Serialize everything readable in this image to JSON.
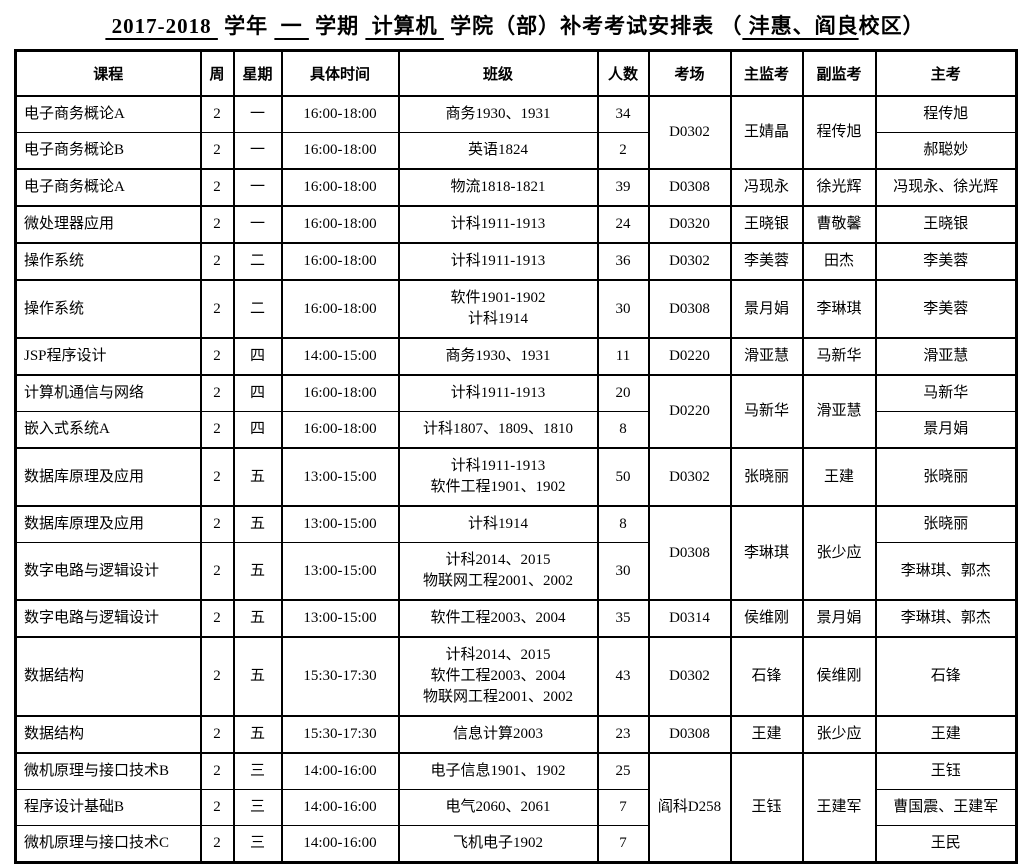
{
  "page": {
    "background_color": "#ffffff",
    "text_color": "#000000",
    "border_color": "#000000"
  },
  "title": {
    "full_text": "2017-2018 学年 一 学期 计算机 学院（部）补考考试安排表 （沣惠、阎良校区）",
    "parts": [
      {
        "text": " 2017-2018 ",
        "underline": true
      },
      {
        "text": " 学年 ",
        "underline": false
      },
      {
        "text": " 一 ",
        "underline": true
      },
      {
        "text": " 学期 ",
        "underline": false
      },
      {
        "text": " 计算机 ",
        "underline": true
      },
      {
        "text": " 学院（部）补考考试安排表 （",
        "underline": false
      },
      {
        "text": " 沣惠、阎良",
        "underline": true
      },
      {
        "text": "校区）",
        "underline": false
      }
    ]
  },
  "table": {
    "columns": [
      {
        "key": "course",
        "label": "课程"
      },
      {
        "key": "week",
        "label": "周"
      },
      {
        "key": "day",
        "label": "星期"
      },
      {
        "key": "time",
        "label": "具体时间"
      },
      {
        "key": "classes",
        "label": "班级"
      },
      {
        "key": "count",
        "label": "人数"
      },
      {
        "key": "room",
        "label": "考场"
      },
      {
        "key": "chief_invigilator",
        "label": "主监考"
      },
      {
        "key": "deputy_invigilator",
        "label": "副监考"
      },
      {
        "key": "examiner",
        "label": "主考"
      }
    ],
    "rows": [
      {
        "course": "电子商务概论A",
        "week": "2",
        "day": "一",
        "time": "16:00-18:00",
        "classes": [
          "商务1930、1931"
        ],
        "count": "34",
        "room": {
          "text": "D0302",
          "rowspan": 2
        },
        "chief_invigilator": {
          "text": "王婧晶",
          "rowspan": 2
        },
        "deputy_invigilator": {
          "text": "程传旭",
          "rowspan": 2
        },
        "examiner": "程传旭"
      },
      {
        "course": "电子商务概论B",
        "week": "2",
        "day": "一",
        "time": "16:00-18:00",
        "classes": [
          "英语1824"
        ],
        "count": "2",
        "examiner": "郝聪妙"
      },
      {
        "course": "电子商务概论A",
        "week": "2",
        "day": "一",
        "time": "16:00-18:00",
        "classes": [
          "物流1818-1821"
        ],
        "count": "39",
        "room": "D0308",
        "chief_invigilator": "冯现永",
        "deputy_invigilator": "徐光辉",
        "examiner": "冯现永、徐光辉"
      },
      {
        "course": "微处理器应用",
        "week": "2",
        "day": "一",
        "time": "16:00-18:00",
        "classes": [
          "计科1911-1913"
        ],
        "count": "24",
        "room": "D0320",
        "chief_invigilator": "王晓银",
        "deputy_invigilator": "曹敬馨",
        "examiner": "王晓银"
      },
      {
        "course": "操作系统",
        "week": "2",
        "day": "二",
        "time": "16:00-18:00",
        "classes": [
          "计科1911-1913"
        ],
        "count": "36",
        "room": "D0302",
        "chief_invigilator": "李美蓉",
        "deputy_invigilator": "田杰",
        "examiner": "李美蓉"
      },
      {
        "course": "操作系统",
        "week": "2",
        "day": "二",
        "time": "16:00-18:00",
        "classes": [
          "软件1901-1902",
          "计科1914"
        ],
        "count": "30",
        "room": "D0308",
        "chief_invigilator": "景月娟",
        "deputy_invigilator": "李琳琪",
        "examiner": "李美蓉"
      },
      {
        "course": "JSP程序设计",
        "week": "2",
        "day": "四",
        "time": "14:00-15:00",
        "classes": [
          "商务1930、1931"
        ],
        "count": "11",
        "room": "D0220",
        "chief_invigilator": "滑亚慧",
        "deputy_invigilator": "马新华",
        "examiner": "滑亚慧"
      },
      {
        "course": "计算机通信与网络",
        "week": "2",
        "day": "四",
        "time": "16:00-18:00",
        "classes": [
          "计科1911-1913"
        ],
        "count": "20",
        "room": {
          "text": "D0220",
          "rowspan": 2
        },
        "chief_invigilator": {
          "text": "马新华",
          "rowspan": 2
        },
        "deputy_invigilator": {
          "text": "滑亚慧",
          "rowspan": 2
        },
        "examiner": "马新华"
      },
      {
        "course": "嵌入式系统A",
        "week": "2",
        "day": "四",
        "time": "16:00-18:00",
        "classes": [
          "计科1807、1809、1810"
        ],
        "count": "8",
        "examiner": "景月娟"
      },
      {
        "course": "数据库原理及应用",
        "week": "2",
        "day": "五",
        "time": "13:00-15:00",
        "classes": [
          "计科1911-1913",
          "软件工程1901、1902"
        ],
        "count": "50",
        "room": "D0302",
        "chief_invigilator": "张晓丽",
        "deputy_invigilator": "王建",
        "examiner": "张晓丽"
      },
      {
        "course": "数据库原理及应用",
        "week": "2",
        "day": "五",
        "time": "13:00-15:00",
        "classes": [
          "计科1914"
        ],
        "count": "8",
        "room": {
          "text": "D0308",
          "rowspan": 2
        },
        "chief_invigilator": {
          "text": "李琳琪",
          "rowspan": 2
        },
        "deputy_invigilator": {
          "text": "张少应",
          "rowspan": 2
        },
        "examiner": "张晓丽"
      },
      {
        "course": "数字电路与逻辑设计",
        "week": "2",
        "day": "五",
        "time": "13:00-15:00",
        "classes": [
          "计科2014、2015",
          "物联网工程2001、2002"
        ],
        "count": "30",
        "examiner": "李琳琪、郭杰"
      },
      {
        "course": "数字电路与逻辑设计",
        "week": "2",
        "day": "五",
        "time": "13:00-15:00",
        "classes": [
          "软件工程2003、2004"
        ],
        "count": "35",
        "room": "D0314",
        "chief_invigilator": "侯维刚",
        "deputy_invigilator": "景月娟",
        "examiner": "李琳琪、郭杰"
      },
      {
        "course": "数据结构",
        "week": "2",
        "day": "五",
        "time": "15:30-17:30",
        "classes": [
          "计科2014、2015",
          "软件工程2003、2004",
          "物联网工程2001、2002"
        ],
        "count": "43",
        "room": "D0302",
        "chief_invigilator": "石锋",
        "deputy_invigilator": "侯维刚",
        "examiner": "石锋"
      },
      {
        "course": "数据结构",
        "week": "2",
        "day": "五",
        "time": "15:30-17:30",
        "classes": [
          "信息计算2003"
        ],
        "count": "23",
        "room": "D0308",
        "chief_invigilator": "王建",
        "deputy_invigilator": "张少应",
        "examiner": "王建"
      },
      {
        "course": "微机原理与接口技术B",
        "week": "2",
        "day": "三",
        "time": "14:00-16:00",
        "classes": [
          "电子信息1901、1902"
        ],
        "count": "25",
        "room": {
          "text": "阎科D258",
          "rowspan": 3
        },
        "chief_invigilator": {
          "text": "王钰",
          "rowspan": 3
        },
        "deputy_invigilator": {
          "text": "王建军",
          "rowspan": 3
        },
        "examiner": "王钰"
      },
      {
        "course": "程序设计基础B",
        "week": "2",
        "day": "三",
        "time": "14:00-16:00",
        "classes": [
          "电气2060、2061"
        ],
        "count": "7",
        "examiner": "曹国震、王建军"
      },
      {
        "course": "微机原理与接口技术C",
        "week": "2",
        "day": "三",
        "time": "14:00-16:00",
        "classes": [
          "飞机电子1902"
        ],
        "count": "7",
        "examiner": "王民"
      }
    ]
  }
}
